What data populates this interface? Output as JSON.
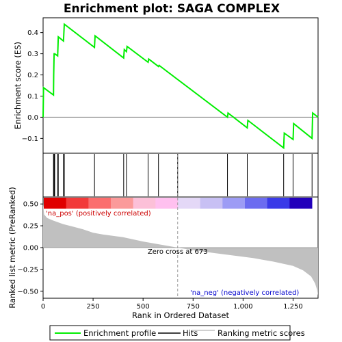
{
  "chart_data": {
    "type": "line",
    "title": "Enrichment plot: SAGA COMPLEX",
    "top_panel": {
      "ylabel": "Enrichment score (ES)",
      "ylim": [
        -0.17,
        0.47
      ],
      "yticks": [
        -0.1,
        0.0,
        0.1,
        0.2,
        0.3,
        0.4
      ],
      "ytick_labels": [
        "−0.1",
        "0.0",
        "0.1",
        "0.2",
        "0.3",
        "0.4"
      ],
      "series": [
        {
          "name": "Enrichment profile",
          "color": "#00ee00",
          "x": [
            0,
            2,
            52,
            53,
            55,
            58,
            73,
            76,
            102,
            106,
            257,
            260,
            403,
            406,
            417,
            420,
            525,
            528,
            577,
            580,
            922,
            925,
            1021,
            1024,
            1203,
            1206,
            1250,
            1253,
            1345,
            1348,
            1375
          ],
          "y": [
            0.0,
            0.14,
            0.105,
            0.2,
            0.3,
            0.3,
            0.29,
            0.38,
            0.36,
            0.44,
            0.33,
            0.385,
            0.28,
            0.32,
            0.31,
            0.335,
            0.26,
            0.275,
            0.24,
            0.245,
            0.0,
            0.02,
            -0.05,
            -0.015,
            -0.145,
            -0.075,
            -0.105,
            -0.03,
            -0.1,
            0.02,
            0.0
          ]
        }
      ]
    },
    "hits": {
      "name": "Hits",
      "positions": [
        52,
        55,
        58,
        73,
        76,
        102,
        106,
        257,
        403,
        417,
        525,
        577,
        673,
        922,
        1021,
        1203,
        1250,
        1345
      ]
    },
    "bar_colors": [
      "#e00000",
      "#f23a3a",
      "#fb6e6e",
      "#fb9a9a",
      "#fcc0d8",
      "#ffc0ef",
      "#e4d8f7",
      "#c8c0f4",
      "#9d9cf5",
      "#6c6cf0",
      "#3a3ae8",
      "#2200bb"
    ],
    "bottom_panel": {
      "ylabel": "Ranked list metric (PreRanked)",
      "xlabel": "Rank in Ordered Dataset",
      "xlim": [
        0,
        1375
      ],
      "ylim": [
        -0.58,
        0.58
      ],
      "xticks": [
        0,
        250,
        500,
        750,
        1000,
        1250
      ],
      "xtick_labels": [
        "0",
        "250",
        "500",
        "750",
        "1,000",
        "1,250"
      ],
      "yticks": [
        -0.5,
        -0.25,
        0.0,
        0.25,
        0.5
      ],
      "ytick_labels": [
        "−0.50",
        "−0.25",
        "0.00",
        "0.25",
        "0.50"
      ],
      "metric_profile": {
        "x": [
          0,
          5,
          20,
          50,
          100,
          150,
          200,
          250,
          300,
          400,
          500,
          600,
          673,
          750,
          850,
          950,
          1050,
          1150,
          1250,
          1300,
          1340,
          1360,
          1370,
          1375
        ],
        "y": [
          0.5,
          0.38,
          0.34,
          0.31,
          0.27,
          0.24,
          0.21,
          0.17,
          0.15,
          0.12,
          0.07,
          0.03,
          0.0,
          -0.03,
          -0.06,
          -0.09,
          -0.12,
          -0.16,
          -0.21,
          -0.26,
          -0.33,
          -0.41,
          -0.48,
          -0.55
        ]
      },
      "zero_cross_label": "Zero cross at 673",
      "zero_cross_x": 673,
      "pos_label": "'na_pos' (positively correlated)",
      "neg_label": "'na_neg' (negatively correlated)",
      "pos_color": "#cc0000",
      "neg_color": "#0000cc"
    },
    "legend": {
      "items": [
        {
          "label": "Enrichment profile",
          "color": "#00ee00"
        },
        {
          "label": "Hits",
          "color": "#000000"
        },
        {
          "label": "Ranking metric scores",
          "color": "#c0c0c0"
        }
      ]
    }
  }
}
